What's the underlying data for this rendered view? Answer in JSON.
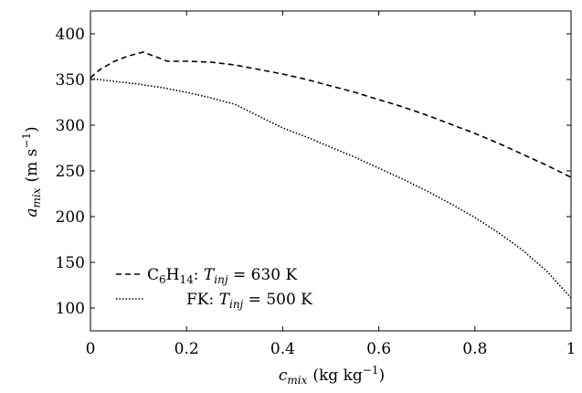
{
  "chart_data": {
    "type": "line",
    "xlabel": "c_mix (kg kg^-1)",
    "ylabel": "a_mix (m s^-1)",
    "xlim": [
      0,
      1
    ],
    "ylim": [
      75,
      425
    ],
    "xticks": [
      0,
      0.2,
      0.4,
      0.6,
      0.8,
      1
    ],
    "xtick_labels": [
      "0",
      "0.2",
      "0.4",
      "0.6",
      "0.8",
      "1"
    ],
    "yticks": [
      100,
      150,
      200,
      250,
      300,
      350,
      400
    ],
    "ytick_labels": [
      "100",
      "150",
      "200",
      "250",
      "300",
      "350",
      "400"
    ],
    "grid": false,
    "legend_position": "bottom-left",
    "series": [
      {
        "name": "C6H14: T_inj = 630 K",
        "style": "dashed",
        "x": [
          0,
          0.02,
          0.05,
          0.08,
          0.11,
          0.13,
          0.16,
          0.2,
          0.25,
          0.3,
          0.35,
          0.4,
          0.45,
          0.5,
          0.55,
          0.6,
          0.65,
          0.7,
          0.75,
          0.8,
          0.85,
          0.9,
          0.95,
          1.0
        ],
        "y": [
          352,
          361,
          370,
          376,
          380,
          376,
          370,
          370,
          369,
          366,
          361,
          356,
          350,
          343,
          336,
          328,
          320,
          311,
          301,
          291,
          280,
          268,
          256,
          243
        ]
      },
      {
        "name": "FK: T_inj = 500 K",
        "style": "dotted",
        "x": [
          0,
          0.05,
          0.1,
          0.15,
          0.2,
          0.25,
          0.3,
          0.35,
          0.4,
          0.45,
          0.5,
          0.55,
          0.6,
          0.65,
          0.7,
          0.75,
          0.8,
          0.85,
          0.9,
          0.95,
          1.0
        ],
        "y": [
          351,
          348,
          345,
          341,
          336,
          330,
          323,
          310,
          297,
          287,
          276,
          265,
          253,
          241,
          228,
          214,
          199,
          182,
          163,
          140,
          111
        ]
      }
    ]
  },
  "axes": {
    "x_title_main": "c",
    "x_title_sub": "mix",
    "x_title_unit": "(kg kg",
    "x_title_sup": "−1",
    "x_title_close": ")",
    "y_title_main": "a",
    "y_title_sub": "mix",
    "y_title_unit": "(m s",
    "y_title_sup": "−1",
    "y_title_close": ")"
  },
  "legend": {
    "entry1_species": "C",
    "entry1_sub1": "6",
    "entry1_h": "H",
    "entry1_sub2": "14",
    "entry1_colon": ": ",
    "entry1_T": "T",
    "entry1_T_sub": "inj",
    "entry1_value": " = 630 K",
    "entry2_species": "FK: ",
    "entry2_T": "T",
    "entry2_T_sub": "inj",
    "entry2_value": " = 500 K"
  }
}
